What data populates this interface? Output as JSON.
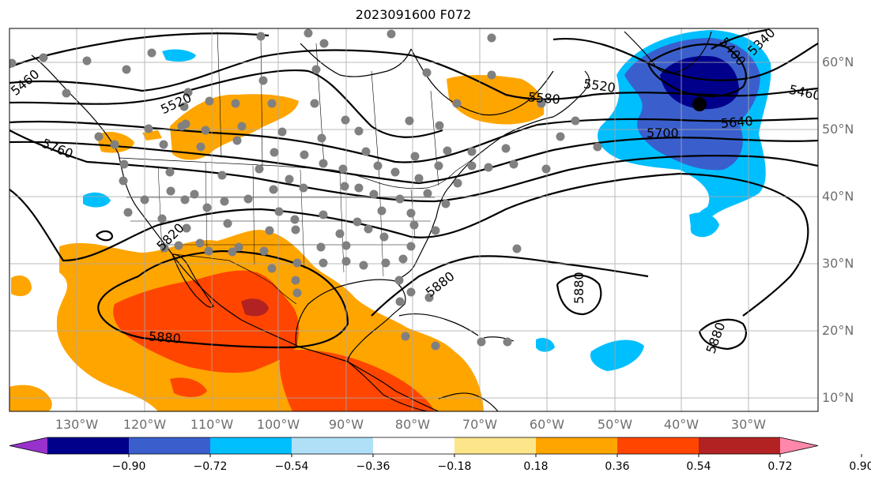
{
  "title": "2023091600 F072",
  "map": {
    "lon_labels": [
      "130°W",
      "120°W",
      "110°W",
      "100°W",
      "90°W",
      "80°W",
      "70°W",
      "60°W",
      "50°W",
      "40°W",
      "30°W"
    ],
    "lat_labels": [
      "60°N",
      "50°N",
      "40°N",
      "30°N",
      "20°N",
      "10°N"
    ],
    "contour_labels": [
      "5460",
      "5520",
      "5580",
      "5520",
      "5400",
      "5460",
      "5640",
      "5700",
      "5760",
      "5820",
      "5880",
      "5880",
      "5880",
      "5880",
      "5340"
    ],
    "anomaly_colors": {
      "deep_purple": "#9932cc",
      "navy": "#00008b",
      "royal_blue": "#3a5fcd",
      "deep_sky_blue": "#00bfff",
      "light_blue": "#b0e0f8",
      "white": "#ffffff",
      "khaki": "#fde68a",
      "orange": "#ffa500",
      "orange_red": "#ff4500",
      "firebrick": "#b22222",
      "pink": "#ff88aa"
    },
    "station_color": "#808080"
  },
  "colorbar": {
    "tick_labels": [
      "−0.90",
      "−0.72",
      "−0.54",
      "−0.36",
      "−0.18",
      "0.18",
      "0.36",
      "0.54",
      "0.72",
      "0.90"
    ],
    "colors": [
      "#9932cc",
      "#00008b",
      "#3a5fcd",
      "#00bfff",
      "#b0e0f8",
      "#ffffff",
      "#fde68a",
      "#ffa500",
      "#ff4500",
      "#b22222",
      "#ff88aa"
    ]
  }
}
